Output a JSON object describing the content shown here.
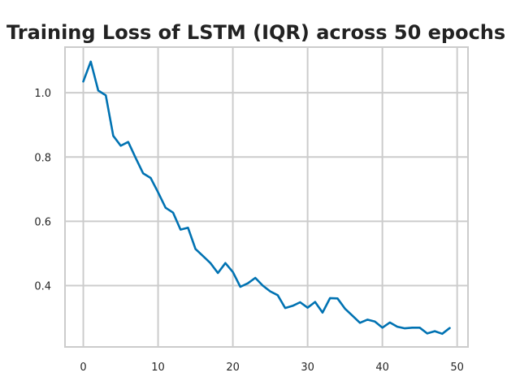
{
  "chart_data": {
    "type": "line",
    "title": "Training Loss of LSTM (IQR) across 50 epochs",
    "xlabel": "",
    "ylabel": "",
    "xlim": [
      -2.45,
      51.45
    ],
    "ylim": [
      0.209,
      1.142
    ],
    "x_ticks": [
      0,
      10,
      20,
      30,
      40,
      50
    ],
    "y_ticks": [
      0.4,
      0.6,
      0.8,
      1.0
    ],
    "x_tick_labels": [
      "0",
      "10",
      "20",
      "30",
      "40",
      "50"
    ],
    "y_tick_labels": [
      "0.4",
      "0.6",
      "0.8",
      "1.0"
    ],
    "grid": true,
    "legend": "none",
    "series": [
      {
        "color": "#0072b2",
        "x": [
          0,
          1,
          2,
          3,
          4,
          5,
          6,
          7,
          8,
          9,
          10,
          11,
          12,
          13,
          14,
          15,
          16,
          17,
          18,
          19,
          20,
          21,
          22,
          23,
          24,
          25,
          26,
          27,
          28,
          29,
          30,
          31,
          32,
          33,
          34,
          35,
          36,
          37,
          38,
          39,
          40,
          41,
          42,
          43,
          44,
          45,
          46,
          47,
          48,
          49
        ],
        "values": [
          1.035,
          1.097,
          1.007,
          0.992,
          0.866,
          0.835,
          0.847,
          0.797,
          0.749,
          0.735,
          0.69,
          0.642,
          0.627,
          0.574,
          0.58,
          0.514,
          0.492,
          0.47,
          0.439,
          0.47,
          0.442,
          0.396,
          0.407,
          0.424,
          0.4,
          0.382,
          0.37,
          0.33,
          0.337,
          0.348,
          0.331,
          0.349,
          0.316,
          0.361,
          0.36,
          0.328,
          0.306,
          0.284,
          0.294,
          0.288,
          0.269,
          0.285,
          0.272,
          0.267,
          0.269,
          0.269,
          0.251,
          0.258,
          0.25,
          0.268
        ]
      }
    ]
  }
}
